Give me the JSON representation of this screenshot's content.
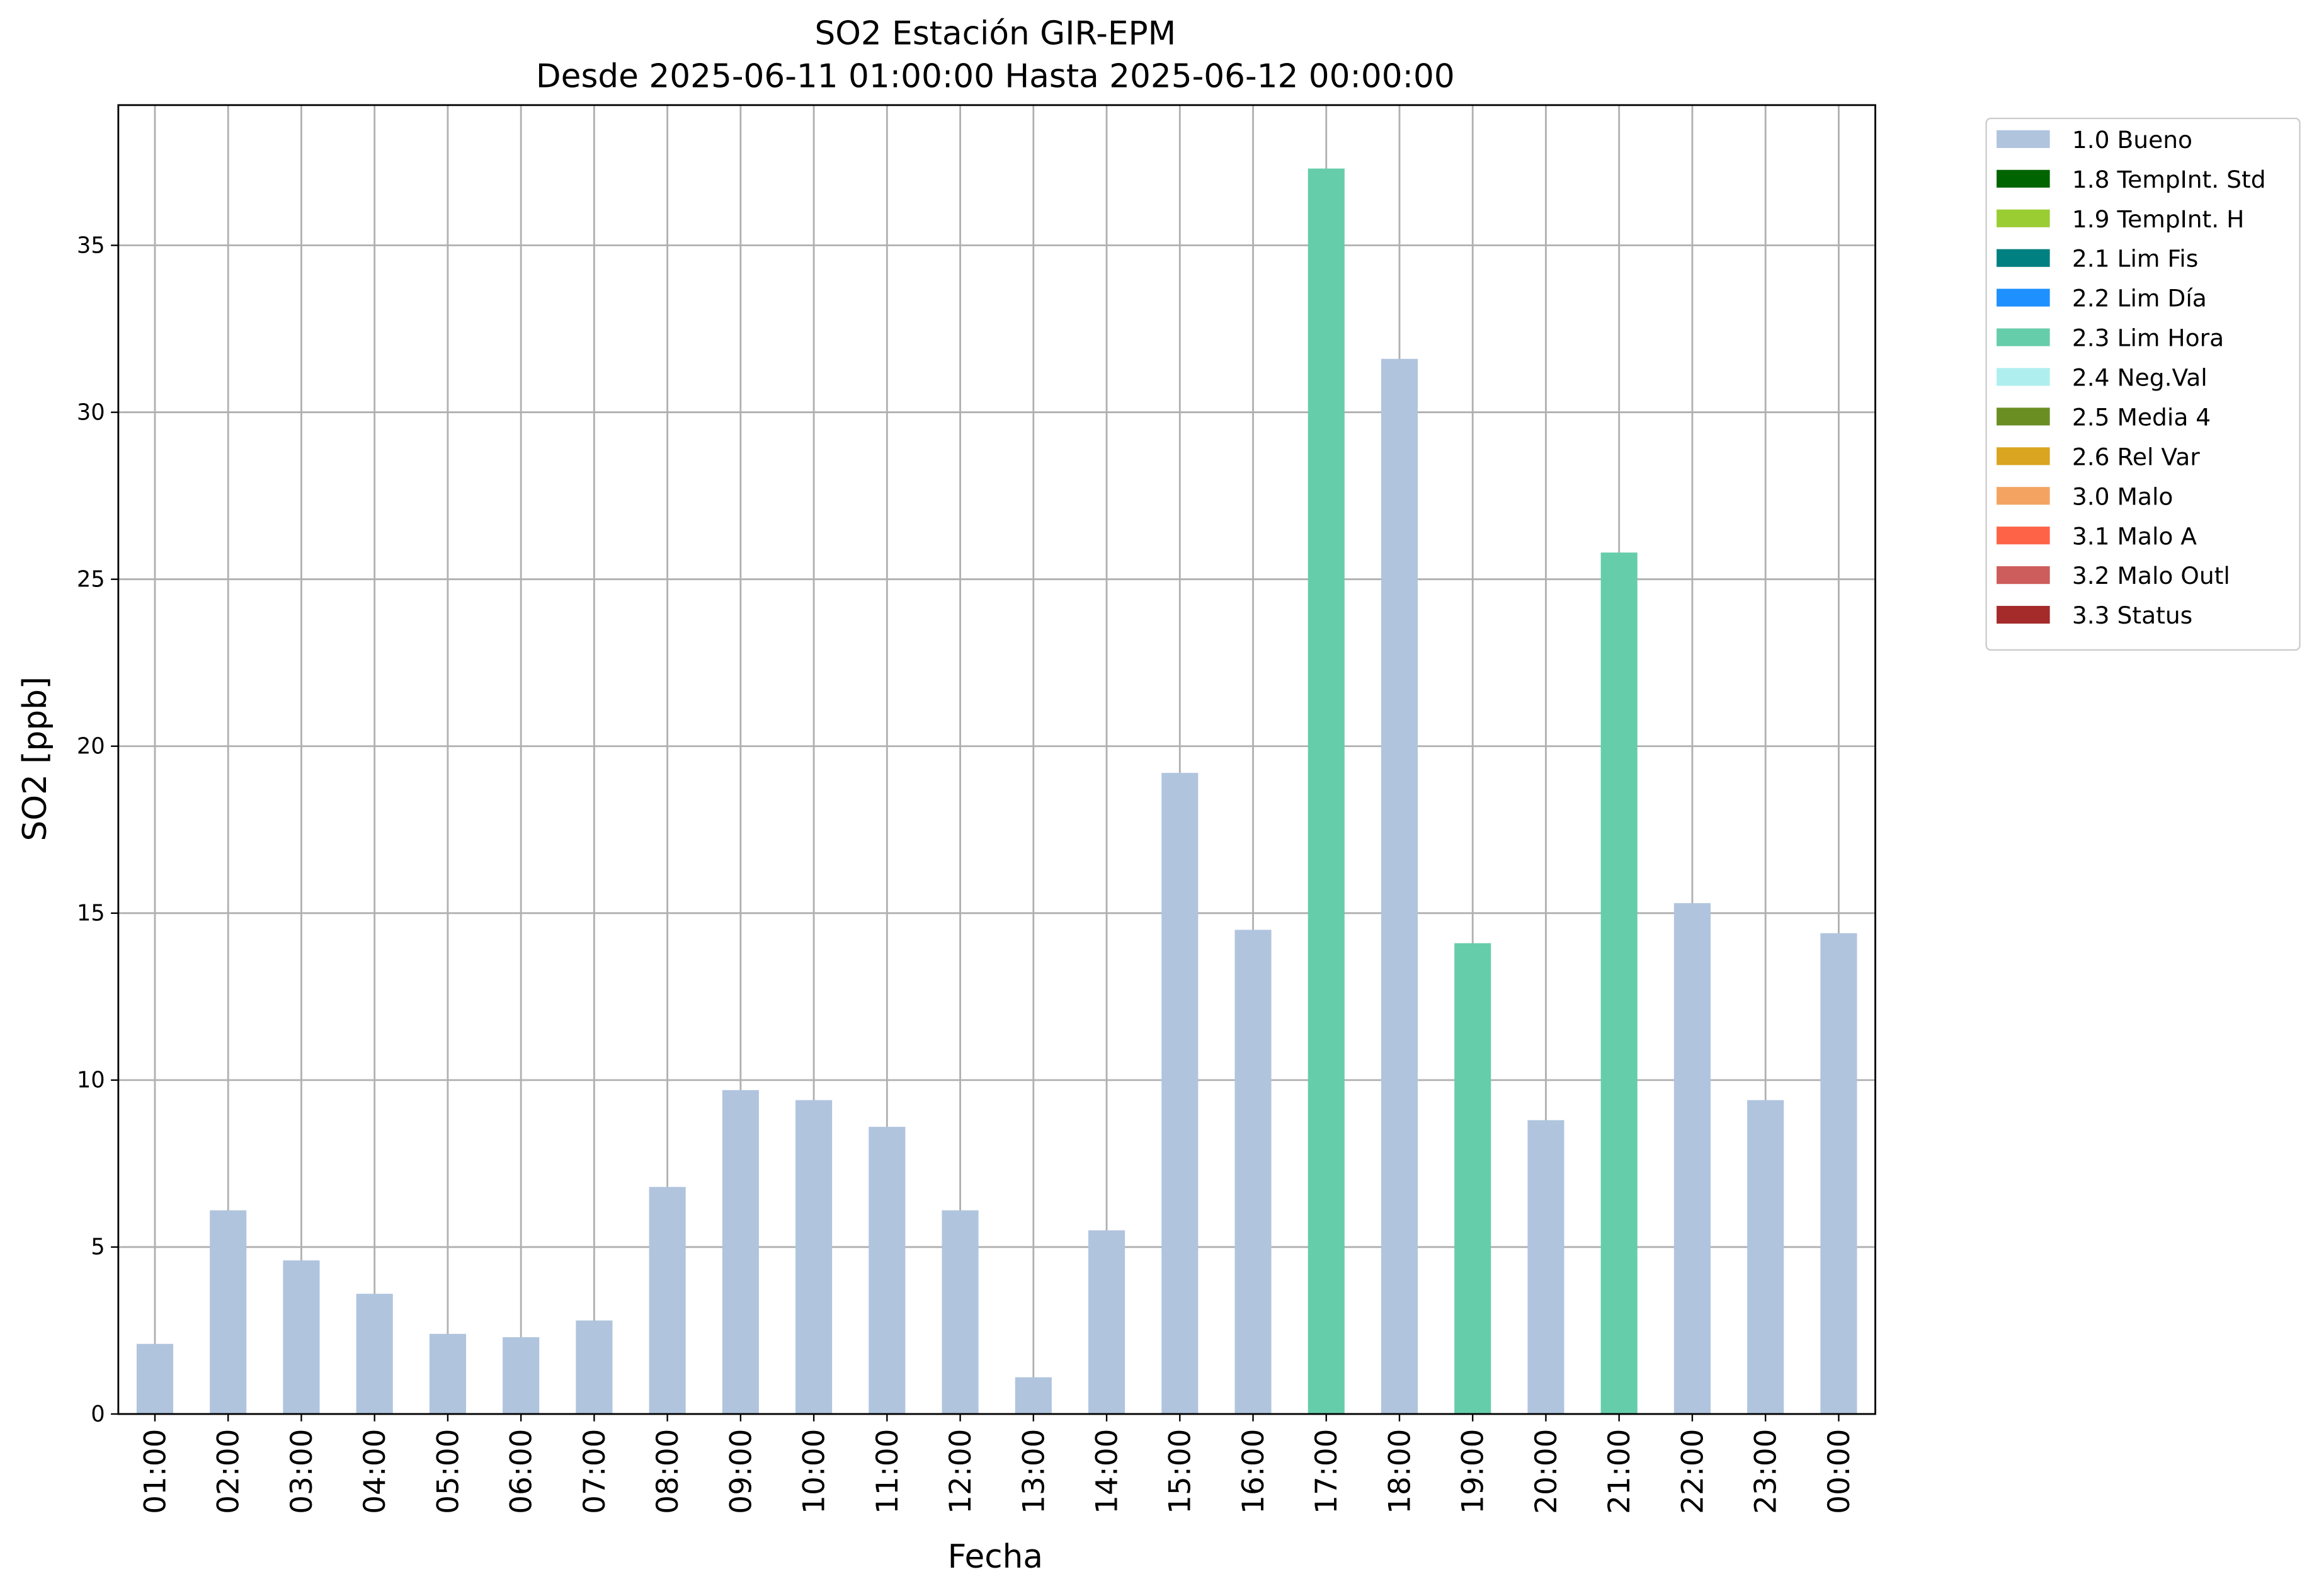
{
  "chart_data": {
    "type": "stacked_bar",
    "title": "SO2 Estación GIR-EPM",
    "subtitle": "Desde 2025-06-11 01:00:00 Hasta 2025-06-12 00:00:00",
    "xlabel": "Fecha",
    "ylabel": "SO2 [ppb]",
    "categories": [
      "01:00",
      "02:00",
      "03:00",
      "04:00",
      "05:00",
      "06:00",
      "07:00",
      "08:00",
      "09:00",
      "10:00",
      "11:00",
      "12:00",
      "13:00",
      "14:00",
      "15:00",
      "16:00",
      "17:00",
      "18:00",
      "19:00",
      "20:00",
      "21:00",
      "22:00",
      "23:00",
      "00:00"
    ],
    "series": [
      {
        "name": "1.0 Bueno",
        "color": "#b0c4de",
        "values": [
          2.1,
          6.1,
          4.6,
          3.6,
          2.4,
          2.3,
          2.8,
          6.8,
          9.7,
          9.4,
          8.6,
          6.1,
          1.1,
          5.5,
          19.2,
          14.5,
          null,
          31.6,
          null,
          8.8,
          null,
          15.3,
          9.4,
          14.4
        ]
      },
      {
        "name": "1.8 TempInt. Std",
        "color": "#006400",
        "values": [
          null,
          null,
          null,
          null,
          null,
          null,
          null,
          null,
          null,
          null,
          null,
          null,
          null,
          null,
          null,
          null,
          null,
          null,
          null,
          null,
          null,
          null,
          null,
          null
        ]
      },
      {
        "name": "1.9 TempInt. H",
        "color": "#9acd32",
        "values": [
          null,
          null,
          null,
          null,
          null,
          null,
          null,
          null,
          null,
          null,
          null,
          null,
          null,
          null,
          null,
          null,
          null,
          null,
          null,
          null,
          null,
          null,
          null,
          null
        ]
      },
      {
        "name": "2.1 Lim Fis",
        "color": "#008080",
        "values": [
          null,
          null,
          null,
          null,
          null,
          null,
          null,
          null,
          null,
          null,
          null,
          null,
          null,
          null,
          null,
          null,
          null,
          null,
          null,
          null,
          null,
          null,
          null,
          null
        ]
      },
      {
        "name": "2.2 Lim Día",
        "color": "#1e90ff",
        "values": [
          null,
          null,
          null,
          null,
          null,
          null,
          null,
          null,
          null,
          null,
          null,
          null,
          null,
          null,
          null,
          null,
          null,
          null,
          null,
          null,
          null,
          null,
          null,
          null
        ]
      },
      {
        "name": "2.3 Lim Hora",
        "color": "#66cdaa",
        "values": [
          null,
          null,
          null,
          null,
          null,
          null,
          null,
          null,
          null,
          null,
          null,
          null,
          null,
          null,
          null,
          null,
          37.3,
          null,
          14.1,
          null,
          25.8,
          null,
          null,
          null
        ]
      },
      {
        "name": "2.4 Neg.Val",
        "color": "#afeeee",
        "values": [
          null,
          null,
          null,
          null,
          null,
          null,
          null,
          null,
          null,
          null,
          null,
          null,
          null,
          null,
          null,
          null,
          null,
          null,
          null,
          null,
          null,
          null,
          null,
          null
        ]
      },
      {
        "name": "2.5 Media 4",
        "color": "#6b8e23",
        "values": [
          null,
          null,
          null,
          null,
          null,
          null,
          null,
          null,
          null,
          null,
          null,
          null,
          null,
          null,
          null,
          null,
          null,
          null,
          null,
          null,
          null,
          null,
          null,
          null
        ]
      },
      {
        "name": "2.6 Rel Var",
        "color": "#daa520",
        "values": [
          null,
          null,
          null,
          null,
          null,
          null,
          null,
          null,
          null,
          null,
          null,
          null,
          null,
          null,
          null,
          null,
          null,
          null,
          null,
          null,
          null,
          null,
          null,
          null
        ]
      },
      {
        "name": "3.0 Malo",
        "color": "#f4a460",
        "values": [
          null,
          null,
          null,
          null,
          null,
          null,
          null,
          null,
          null,
          null,
          null,
          null,
          null,
          null,
          null,
          null,
          null,
          null,
          null,
          null,
          null,
          null,
          null,
          null
        ]
      },
      {
        "name": "3.1 Malo A",
        "color": "#ff6347",
        "values": [
          null,
          null,
          null,
          null,
          null,
          null,
          null,
          null,
          null,
          null,
          null,
          null,
          null,
          null,
          null,
          null,
          null,
          null,
          null,
          null,
          null,
          null,
          null,
          null
        ]
      },
      {
        "name": "3.2 Malo Outl",
        "color": "#cd5c5c",
        "values": [
          null,
          null,
          null,
          null,
          null,
          null,
          null,
          null,
          null,
          null,
          null,
          null,
          null,
          null,
          null,
          null,
          null,
          null,
          null,
          null,
          null,
          null,
          null,
          null
        ]
      },
      {
        "name": "3.3 Status",
        "color": "#a52a2a",
        "values": [
          null,
          null,
          null,
          null,
          null,
          null,
          null,
          null,
          null,
          null,
          null,
          null,
          null,
          null,
          null,
          null,
          null,
          null,
          null,
          null,
          null,
          null,
          null,
          null
        ]
      }
    ],
    "ylim": [
      0,
      39.2
    ],
    "yticks": [
      0,
      5,
      10,
      15,
      20,
      25,
      30,
      35
    ],
    "grid": true,
    "legend": "outside upper right"
  }
}
